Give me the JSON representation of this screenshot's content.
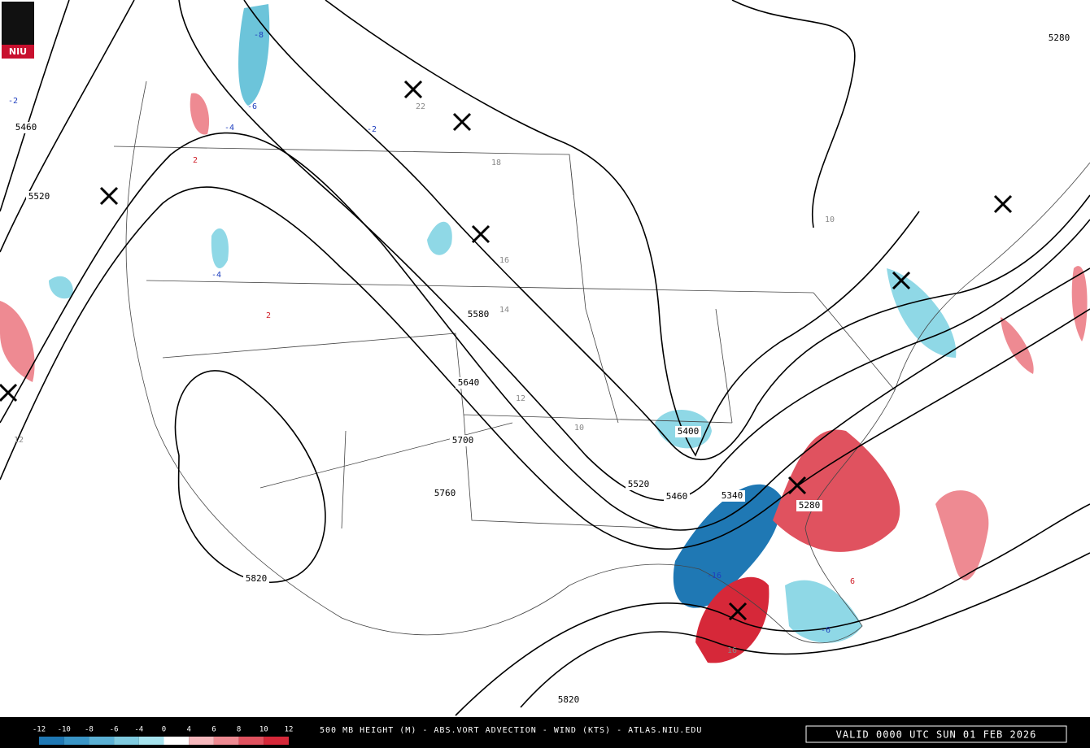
{
  "logo": "NIU",
  "footer": {
    "title": "500 MB HEIGHT (M) - ABS.VORT ADVECTION - WIND (KTS) - ATLAS.NIU.EDU",
    "valid": "VALID 0000 UTC SUN 01 FEB 2026"
  },
  "legend": {
    "labels": [
      "-12",
      "-10",
      "-8",
      "-6",
      "-4",
      "0",
      "4",
      "6",
      "8",
      "10",
      "12"
    ],
    "colors": [
      "#1f78b4",
      "#3a95c6",
      "#5bb0d4",
      "#7fcadf",
      "#a6e3ee",
      "#ffffff",
      "#f6b8bd",
      "#ee8a92",
      "#e0525f",
      "#d62839"
    ]
  },
  "height_labels": [
    "5280",
    "5460",
    "5520",
    "5580",
    "5640",
    "5700",
    "5760",
    "5820",
    "5400",
    "5520",
    "5460",
    "5340",
    "5280",
    "5820"
  ],
  "vort_labels": [
    "-8",
    "-6",
    "-4",
    "-2",
    "-2",
    "2",
    "2",
    "-4",
    "22",
    "18",
    "16",
    "14",
    "12",
    "10",
    "-16",
    "16",
    "-6",
    "6",
    "10",
    "12"
  ]
}
